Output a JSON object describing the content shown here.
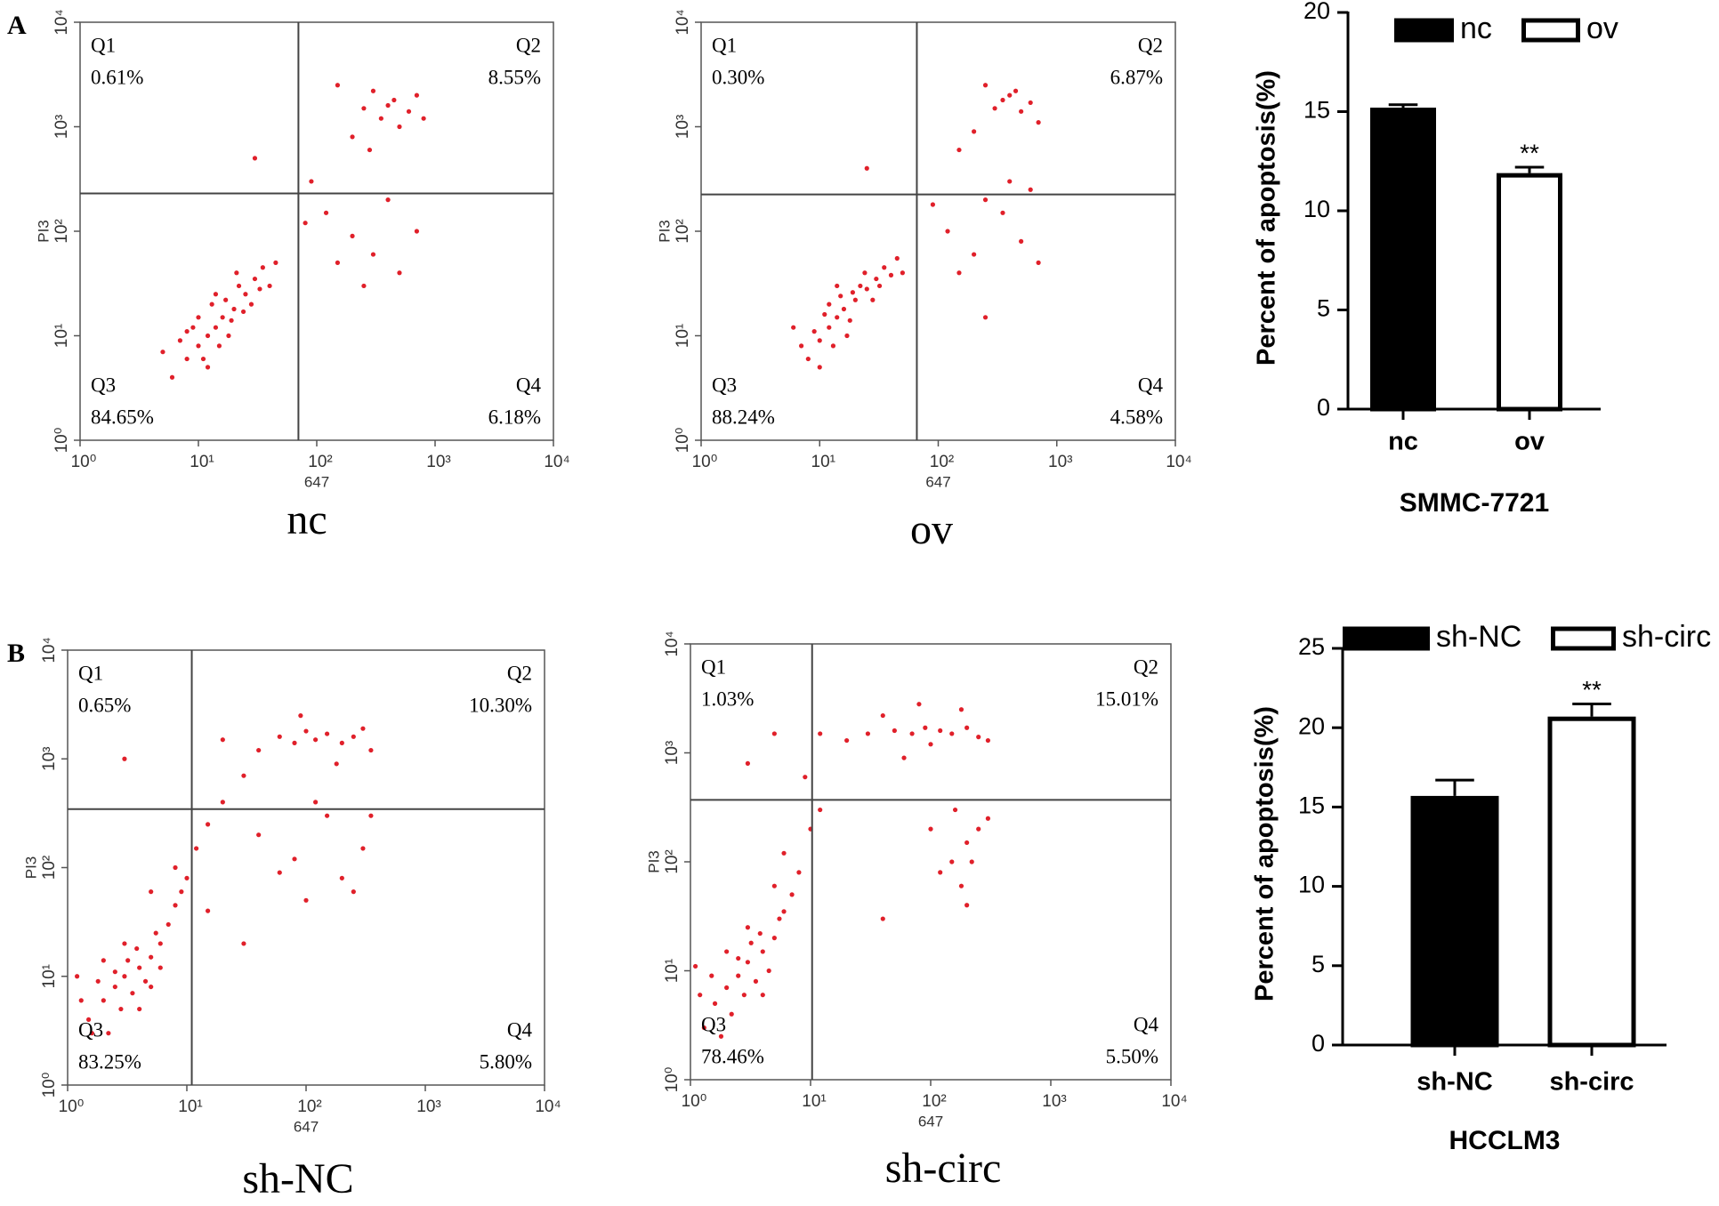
{
  "chart_data": [
    {
      "type": "scatter",
      "panel": "A",
      "caption": "nc",
      "xlabel": "647",
      "ylabel": "PI3",
      "color": "#e0202a",
      "xscale": "log",
      "yscale": "log",
      "xlim": [
        1,
        10000
      ],
      "ylim": [
        1,
        10000
      ],
      "xticks": [
        {
          "value": 1,
          "label": "10⁰"
        },
        {
          "value": 10,
          "label": "10¹"
        },
        {
          "value": 100,
          "label": "10²"
        },
        {
          "value": 1000,
          "label": "10³"
        },
        {
          "value": 10000,
          "label": "10⁴"
        }
      ],
      "yticks": [
        {
          "value": 1,
          "label": "10⁰"
        },
        {
          "value": 10,
          "label": "10¹"
        },
        {
          "value": 100,
          "label": "10²"
        },
        {
          "value": 1000,
          "label": "10³"
        },
        {
          "value": 10000,
          "label": "10⁴"
        }
      ],
      "gates": {
        "x": 70,
        "y": 230
      },
      "quadrants": {
        "names": [
          "Q1",
          "Q2",
          "Q3",
          "Q4"
        ],
        "values": [
          0.61,
          8.55,
          84.65,
          6.18
        ],
        "value_labels": [
          "0.61%",
          "8.55%",
          "84.65%",
          "6.18%"
        ]
      },
      "x": [
        6,
        8,
        10,
        12,
        14,
        16,
        20,
        25,
        30,
        9,
        11,
        13,
        18,
        22,
        7,
        15,
        17,
        28,
        35,
        40,
        10,
        12,
        19,
        24,
        8,
        14,
        33,
        45,
        5,
        21,
        250,
        350,
        450,
        600,
        300,
        500,
        200,
        700,
        400,
        150,
        800,
        280,
        120,
        200,
        300,
        500,
        90,
        400,
        150,
        700,
        250,
        80,
        30
      ],
      "y": [
        4,
        6,
        8,
        10,
        12,
        15,
        18,
        25,
        35,
        12,
        6,
        20,
        10,
        30,
        9,
        8,
        22,
        20,
        45,
        30,
        15,
        5,
        14,
        17,
        11,
        25,
        28,
        50,
        7,
        40,
        1500,
        1200,
        1800,
        1400,
        2200,
        1000,
        800,
        2000,
        1600,
        2500,
        1200,
        600,
        150,
        90,
        60,
        40,
        300,
        200,
        50,
        100,
        30,
        120,
        500
      ]
    },
    {
      "type": "scatter",
      "caption": "ov",
      "xlabel": "647",
      "ylabel": "PI3",
      "color": "#e0202a",
      "xscale": "log",
      "yscale": "log",
      "xlim": [
        1,
        10000
      ],
      "ylim": [
        1,
        10000
      ],
      "xticks": [
        {
          "value": 1,
          "label": "10⁰"
        },
        {
          "value": 10,
          "label": "10¹"
        },
        {
          "value": 100,
          "label": "10²"
        },
        {
          "value": 1000,
          "label": "10³"
        },
        {
          "value": 10000,
          "label": "10⁴"
        }
      ],
      "yticks": [
        {
          "value": 1,
          "label": "10⁰"
        },
        {
          "value": 10,
          "label": "10¹"
        },
        {
          "value": 100,
          "label": "10²"
        },
        {
          "value": 1000,
          "label": "10³"
        },
        {
          "value": 10000,
          "label": "10⁴"
        }
      ],
      "gates": {
        "x": 66,
        "y": 225
      },
      "quadrants": {
        "names": [
          "Q1",
          "Q2",
          "Q3",
          "Q4"
        ],
        "values": [
          0.3,
          6.87,
          88.24,
          4.58
        ],
        "value_labels": [
          "0.30%",
          "6.87%",
          "88.24%",
          "4.58%"
        ]
      },
      "x": [
        8,
        10,
        12,
        14,
        16,
        20,
        25,
        30,
        11,
        13,
        18,
        22,
        9,
        15,
        28,
        35,
        40,
        12,
        17,
        24,
        7,
        19,
        32,
        45,
        10,
        14,
        50,
        6,
        350,
        450,
        300,
        500,
        250,
        600,
        200,
        700,
        400,
        150,
        120,
        200,
        350,
        500,
        250,
        700,
        150,
        400,
        90,
        600,
        25,
        250
      ],
      "y": [
        6,
        9,
        12,
        15,
        18,
        22,
        28,
        35,
        16,
        8,
        14,
        30,
        11,
        24,
        22,
        45,
        38,
        20,
        10,
        40,
        8,
        26,
        30,
        55,
        5,
        30,
        40,
        12,
        1800,
        2200,
        1500,
        1400,
        2500,
        1700,
        900,
        1100,
        2000,
        600,
        100,
        60,
        150,
        80,
        200,
        50,
        40,
        300,
        180,
        250,
        400,
        15
      ]
    },
    {
      "type": "bar",
      "categories": [
        "nc",
        "ov"
      ],
      "values": [
        15.2,
        11.9
      ],
      "errors": [
        0.15,
        0.3
      ],
      "colors": [
        "#000000",
        "#ffffff"
      ],
      "ylim": [
        0,
        20
      ],
      "yticks": [
        0,
        5,
        10,
        15,
        20
      ],
      "ylabel": "Percent of apoptosis(%)",
      "xlabel": "SMMC-7721",
      "significance": [
        null,
        "**"
      ],
      "legend": "top"
    },
    {
      "type": "scatter",
      "panel": "B",
      "caption": "sh-NC",
      "xlabel": "647",
      "ylabel": "PI3",
      "color": "#e0202a",
      "xscale": "log",
      "yscale": "log",
      "xlim": [
        1,
        10000
      ],
      "ylim": [
        1,
        10000
      ],
      "xticks": [
        {
          "value": 1,
          "label": "10⁰"
        },
        {
          "value": 10,
          "label": "10¹"
        },
        {
          "value": 100,
          "label": "10²"
        },
        {
          "value": 1000,
          "label": "10³"
        },
        {
          "value": 10000,
          "label": "10⁴"
        }
      ],
      "yticks": [
        {
          "value": 1,
          "label": "10⁰"
        },
        {
          "value": 10,
          "label": "10¹"
        },
        {
          "value": 100,
          "label": "10²"
        },
        {
          "value": 1000,
          "label": "10³"
        },
        {
          "value": 10000,
          "label": "10⁴"
        }
      ],
      "gates": {
        "x": 11,
        "y": 345
      },
      "quadrants": {
        "names": [
          "Q1",
          "Q2",
          "Q3",
          "Q4"
        ],
        "values": [
          0.65,
          10.3,
          83.25,
          5.8
        ],
        "value_labels": [
          "0.65%",
          "10.30%",
          "83.25%",
          "5.80%"
        ]
      },
      "x": [
        1.5,
        2,
        2.5,
        3,
        3.5,
        4,
        5,
        6,
        1.8,
        2.2,
        2.8,
        3.2,
        4.5,
        5.5,
        1.3,
        2.5,
        3.8,
        7,
        8,
        1.2,
        2,
        4,
        6,
        9,
        1.6,
        3,
        5,
        10,
        12,
        15,
        8,
        20,
        5,
        60,
        80,
        100,
        120,
        150,
        200,
        250,
        40,
        300,
        90,
        180,
        30,
        20,
        350,
        40,
        80,
        150,
        200,
        300,
        250,
        60,
        120,
        350,
        100,
        3,
        15,
        30
      ],
      "y": [
        4,
        6,
        8,
        10,
        7,
        12,
        15,
        20,
        9,
        3,
        5,
        14,
        9,
        25,
        6,
        11,
        18,
        30,
        45,
        10,
        14,
        5,
        12,
        60,
        3,
        20,
        8,
        80,
        150,
        250,
        100,
        400,
        60,
        1600,
        1400,
        1800,
        1500,
        1700,
        1400,
        1600,
        1200,
        1900,
        2500,
        900,
        700,
        1500,
        1200,
        200,
        120,
        300,
        80,
        150,
        60,
        90,
        400,
        300,
        50,
        1000,
        40,
        20
      ]
    },
    {
      "type": "scatter",
      "caption": "sh-circ",
      "xlabel": "647",
      "ylabel": "PI3",
      "color": "#e0202a",
      "xscale": "log",
      "yscale": "log",
      "xlim": [
        1,
        10000
      ],
      "ylim": [
        1,
        10000
      ],
      "xticks": [
        {
          "value": 1,
          "label": "10⁰"
        },
        {
          "value": 10,
          "label": "10¹"
        },
        {
          "value": 100,
          "label": "10²"
        },
        {
          "value": 1000,
          "label": "10³"
        },
        {
          "value": 10000,
          "label": "10⁴"
        }
      ],
      "yticks": [
        {
          "value": 1,
          "label": "10⁰"
        },
        {
          "value": 10,
          "label": "10¹"
        },
        {
          "value": 100,
          "label": "10²"
        },
        {
          "value": 1000,
          "label": "10³"
        },
        {
          "value": 10000,
          "label": "10⁴"
        }
      ],
      "gates": {
        "x": 10.3,
        "y": 370
      },
      "quadrants": {
        "names": [
          "Q1",
          "Q2",
          "Q3",
          "Q4"
        ],
        "values": [
          1.03,
          15.01,
          78.46,
          5.5
        ],
        "value_labels": [
          "1.03%",
          "15.01%",
          "78.46%",
          "5.50%"
        ]
      },
      "x": [
        1.3,
        1.6,
        2,
        2.5,
        3,
        3.5,
        4,
        5,
        1.5,
        2.2,
        2.8,
        3.2,
        4.5,
        5.5,
        1.2,
        2.5,
        3.8,
        6,
        7,
        1.1,
        2,
        4,
        1.8,
        3,
        8,
        6,
        10,
        5,
        12,
        9,
        30,
        50,
        70,
        90,
        120,
        150,
        200,
        250,
        20,
        40,
        100,
        180,
        12,
        60,
        300,
        80,
        150,
        200,
        180,
        250,
        120,
        220,
        300,
        160,
        100,
        200,
        3,
        5,
        40
      ],
      "y": [
        3,
        5,
        7,
        9,
        12,
        8,
        15,
        20,
        9,
        4,
        6,
        18,
        10,
        30,
        6,
        13,
        22,
        35,
        50,
        11,
        15,
        6,
        2.5,
        25,
        80,
        120,
        200,
        60,
        300,
        600,
        1500,
        1600,
        1500,
        1700,
        1600,
        1500,
        1700,
        1400,
        1300,
        2200,
        1200,
        2500,
        1500,
        900,
        1300,
        2800,
        100,
        150,
        60,
        200,
        80,
        100,
        250,
        300,
        200,
        40,
        800,
        1500,
        30
      ]
    },
    {
      "type": "bar",
      "categories": [
        "sh-NC",
        "sh-circ"
      ],
      "values": [
        15.7,
        20.7
      ],
      "errors": [
        1.0,
        0.8
      ],
      "colors": [
        "#000000",
        "#ffffff"
      ],
      "ylim": [
        0,
        25
      ],
      "yticks": [
        0,
        5,
        10,
        15,
        20,
        25
      ],
      "ylabel": "Percent of apoptosis(%)",
      "xlabel": "HCCLM3",
      "significance": [
        null,
        "**"
      ],
      "legend": "top"
    }
  ]
}
